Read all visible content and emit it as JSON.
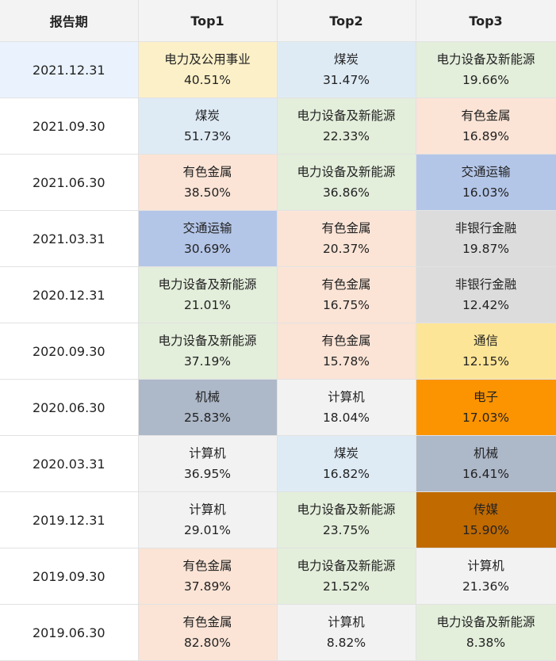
{
  "header": {
    "period": "报告期",
    "top1": "Top1",
    "top2": "Top2",
    "top3": "Top3"
  },
  "rows": [
    {
      "date": "2021.12.31",
      "date_bg": "#eaf3fd",
      "cells": [
        {
          "name": "电力及公用事业",
          "pct": "40.51%",
          "bg": "#fcf0c8"
        },
        {
          "name": "煤炭",
          "pct": "31.47%",
          "bg": "#deebf5"
        },
        {
          "name": "电力设备及新能源",
          "pct": "19.66%",
          "bg": "#e3eedb"
        }
      ]
    },
    {
      "date": "2021.09.30",
      "date_bg": "#ffffff",
      "cells": [
        {
          "name": "煤炭",
          "pct": "51.73%",
          "bg": "#deebf5"
        },
        {
          "name": "电力设备及新能源",
          "pct": "22.33%",
          "bg": "#e3eedb"
        },
        {
          "name": "有色金属",
          "pct": "16.89%",
          "bg": "#fbe4d6"
        }
      ]
    },
    {
      "date": "2021.06.30",
      "date_bg": "#ffffff",
      "cells": [
        {
          "name": "有色金属",
          "pct": "38.50%",
          "bg": "#fbe4d6"
        },
        {
          "name": "电力设备及新能源",
          "pct": "36.86%",
          "bg": "#e3eedb"
        },
        {
          "name": "交通运输",
          "pct": "16.03%",
          "bg": "#b4c6e8"
        }
      ]
    },
    {
      "date": "2021.03.31",
      "date_bg": "#ffffff",
      "cells": [
        {
          "name": "交通运输",
          "pct": "30.69%",
          "bg": "#b4c6e8"
        },
        {
          "name": "有色金属",
          "pct": "20.37%",
          "bg": "#fbe4d6"
        },
        {
          "name": "非银行金融",
          "pct": "19.87%",
          "bg": "#dcdcdc"
        }
      ]
    },
    {
      "date": "2020.12.31",
      "date_bg": "#ffffff",
      "cells": [
        {
          "name": "电力设备及新能源",
          "pct": "21.01%",
          "bg": "#e3eedb"
        },
        {
          "name": "有色金属",
          "pct": "16.75%",
          "bg": "#fbe4d6"
        },
        {
          "name": "非银行金融",
          "pct": "12.42%",
          "bg": "#dcdcdc"
        }
      ]
    },
    {
      "date": "2020.09.30",
      "date_bg": "#ffffff",
      "cells": [
        {
          "name": "电力设备及新能源",
          "pct": "37.19%",
          "bg": "#e3eedb"
        },
        {
          "name": "有色金属",
          "pct": "15.78%",
          "bg": "#fbe4d6"
        },
        {
          "name": "通信",
          "pct": "12.15%",
          "bg": "#fde597"
        }
      ]
    },
    {
      "date": "2020.06.30",
      "date_bg": "#ffffff",
      "cells": [
        {
          "name": "机械",
          "pct": "25.83%",
          "bg": "#adb8c9"
        },
        {
          "name": "计算机",
          "pct": "18.04%",
          "bg": "#f2f2f2"
        },
        {
          "name": "电子",
          "pct": "17.03%",
          "bg": "#fb9400"
        }
      ]
    },
    {
      "date": "2020.03.31",
      "date_bg": "#ffffff",
      "cells": [
        {
          "name": "计算机",
          "pct": "36.95%",
          "bg": "#f2f2f2"
        },
        {
          "name": "煤炭",
          "pct": "16.82%",
          "bg": "#deebf5"
        },
        {
          "name": "机械",
          "pct": "16.41%",
          "bg": "#adb8c9"
        }
      ]
    },
    {
      "date": "2019.12.31",
      "date_bg": "#ffffff",
      "cells": [
        {
          "name": "计算机",
          "pct": "29.01%",
          "bg": "#f2f2f2"
        },
        {
          "name": "电力设备及新能源",
          "pct": "23.75%",
          "bg": "#e3eedb"
        },
        {
          "name": "传媒",
          "pct": "15.90%",
          "bg": "#c06a00"
        }
      ]
    },
    {
      "date": "2019.09.30",
      "date_bg": "#ffffff",
      "cells": [
        {
          "name": "有色金属",
          "pct": "37.89%",
          "bg": "#fbe4d6"
        },
        {
          "name": "电力设备及新能源",
          "pct": "21.52%",
          "bg": "#e3eedb"
        },
        {
          "name": "计算机",
          "pct": "21.36%",
          "bg": "#f2f2f2"
        }
      ]
    },
    {
      "date": "2019.06.30",
      "date_bg": "#ffffff",
      "cells": [
        {
          "name": "有色金属",
          "pct": "82.80%",
          "bg": "#fbe4d6"
        },
        {
          "name": "计算机",
          "pct": "8.82%",
          "bg": "#f2f2f2"
        },
        {
          "name": "电力设备及新能源",
          "pct": "8.38%",
          "bg": "#e3eedb"
        }
      ]
    }
  ]
}
